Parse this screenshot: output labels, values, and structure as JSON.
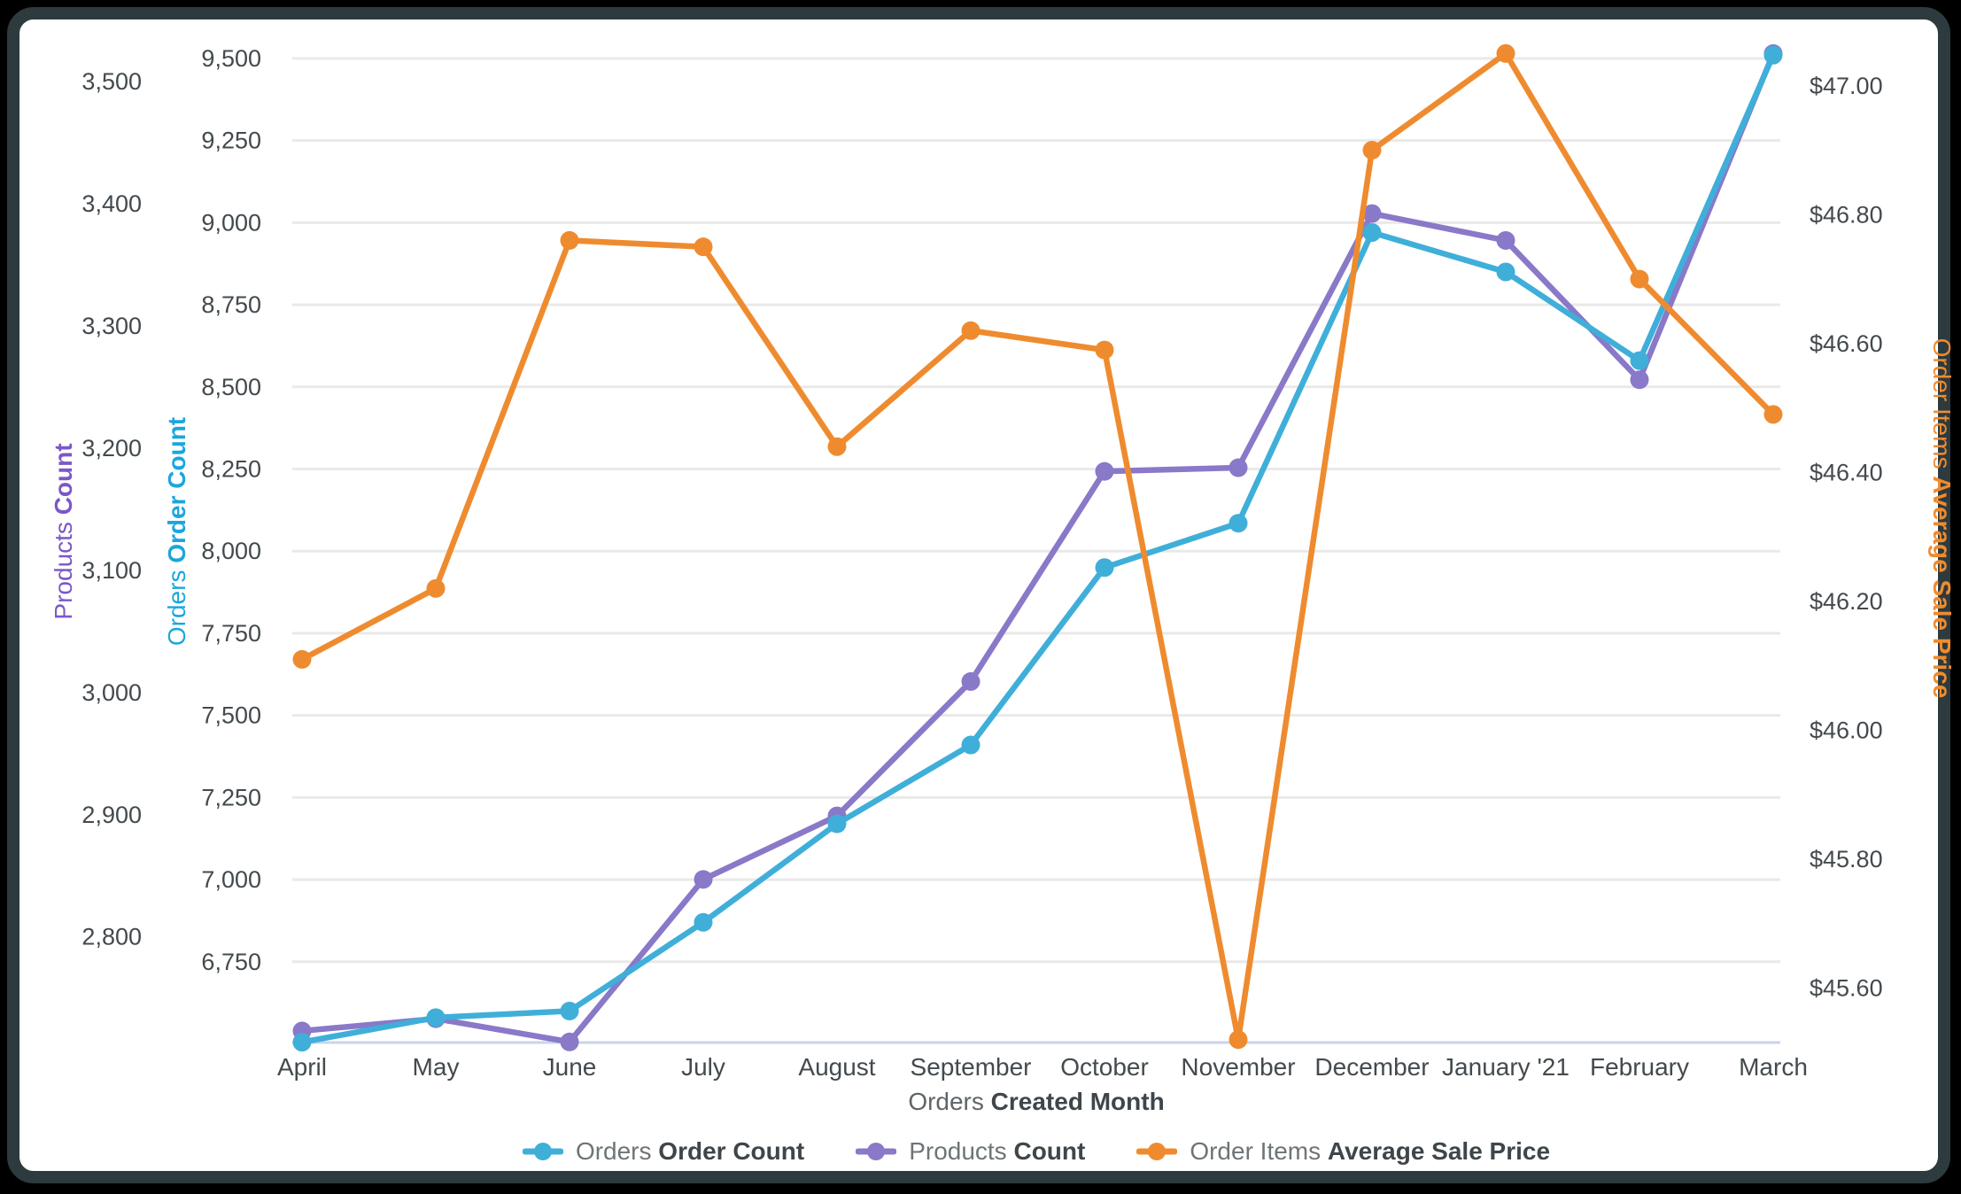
{
  "chart_data": {
    "type": "line",
    "x_axis": {
      "title_prefix": "Orders",
      "title_bold": "Created Month",
      "categories": [
        "April",
        "May",
        "June",
        "July",
        "August",
        "September",
        "October",
        "November",
        "December",
        "January '21",
        "February",
        "March"
      ]
    },
    "axes": {
      "products": {
        "title_prefix": "Products",
        "title_bold": "Count",
        "color": "#7b57c8",
        "min": 2713.5,
        "max": 3537.8,
        "ticks": [
          {
            "v": 3500,
            "label": "3,500"
          },
          {
            "v": 3400,
            "label": "3,400"
          },
          {
            "v": 3300,
            "label": "3,300"
          },
          {
            "v": 3200,
            "label": "3,200"
          },
          {
            "v": 3100,
            "label": "3,100"
          },
          {
            "v": 3000,
            "label": "3,000"
          },
          {
            "v": 2900,
            "label": "2,900"
          },
          {
            "v": 2800,
            "label": "2,800"
          }
        ]
      },
      "orders": {
        "title_prefix": "Orders",
        "title_bold": "Order Count",
        "color": "#1ba6dd",
        "min": 6504,
        "max": 9570,
        "ticks": [
          {
            "v": 9500,
            "label": "9,500"
          },
          {
            "v": 9250,
            "label": "9,250"
          },
          {
            "v": 9000,
            "label": "9,000"
          },
          {
            "v": 8750,
            "label": "8,750"
          },
          {
            "v": 8500,
            "label": "8,500"
          },
          {
            "v": 8250,
            "label": "8,250"
          },
          {
            "v": 8000,
            "label": "8,000"
          },
          {
            "v": 7750,
            "label": "7,750"
          },
          {
            "v": 7500,
            "label": "7,500"
          },
          {
            "v": 7250,
            "label": "7,250"
          },
          {
            "v": 7000,
            "label": "7,000"
          },
          {
            "v": 6750,
            "label": "6,750"
          }
        ]
      },
      "price": {
        "title_prefix": "Order Items",
        "title_bold": "Average Sale Price",
        "color": "#ef8b2f",
        "min": 45.5155,
        "max": 47.078,
        "ticks": [
          {
            "v": 47.0,
            "label": "$47.00"
          },
          {
            "v": 46.8,
            "label": "$46.80"
          },
          {
            "v": 46.6,
            "label": "$46.60"
          },
          {
            "v": 46.4,
            "label": "$46.40"
          },
          {
            "v": 46.2,
            "label": "$46.20"
          },
          {
            "v": 46.0,
            "label": "$46.00"
          },
          {
            "v": 45.8,
            "label": "$45.80"
          },
          {
            "v": 45.6,
            "label": "$45.60"
          }
        ]
      }
    },
    "series": [
      {
        "key": "products-count",
        "prefix": "Products",
        "bold": "Count",
        "axis": "products",
        "color": "#8a78c8",
        "values": [
          2723,
          2733,
          2714,
          2847,
          2899,
          3009,
          3181,
          3184,
          3392,
          3370,
          3256,
          3523
        ]
      },
      {
        "key": "orders-order-count",
        "prefix": "Orders",
        "bold": "Order Count",
        "axis": "orders",
        "color": "#3fafd9",
        "values": [
          6505,
          6580,
          6600,
          6870,
          7170,
          7410,
          7950,
          8085,
          8970,
          8850,
          8580,
          9510
        ]
      },
      {
        "key": "order-items-average-sale-price",
        "prefix": "Order Items",
        "bold": "Average Sale Price",
        "axis": "price",
        "color": "#ef8b2f",
        "values": [
          46.11,
          46.22,
          46.76,
          46.75,
          46.44,
          46.62,
          46.59,
          45.52,
          46.9,
          47.05,
          46.7,
          46.49
        ]
      }
    ],
    "legend_order": [
      "orders-order-count",
      "products-count",
      "order-items-average-sale-price"
    ],
    "grid": {
      "line_color": "#e9e9e9",
      "axis_line_color": "#c9d4e8",
      "tick_color": "#434a4e"
    }
  }
}
